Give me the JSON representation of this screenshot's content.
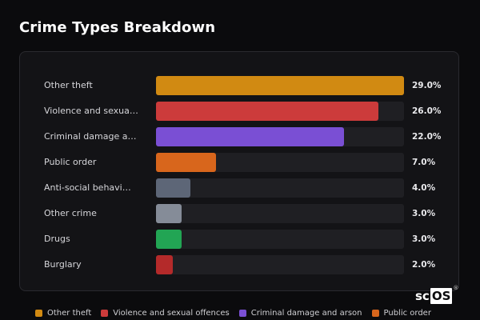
{
  "page": {
    "title": "Crime Types Breakdown"
  },
  "chart_data": {
    "type": "bar",
    "orientation": "horizontal",
    "title": "Crime Types Breakdown",
    "xlabel": "",
    "ylabel": "",
    "xlim": [
      0,
      29
    ],
    "grid": false,
    "legend_position": "bottom",
    "categories": [
      "Other theft",
      "Violence and sexua…",
      "Criminal damage an…",
      "Public order",
      "Anti-social behavi…",
      "Other crime",
      "Drugs",
      "Burglary"
    ],
    "values": [
      29.0,
      26.0,
      22.0,
      7.0,
      4.0,
      3.0,
      3.0,
      2.0
    ],
    "value_labels": [
      "29.0%",
      "26.0%",
      "22.0%",
      "7.0%",
      "4.0%",
      "3.0%",
      "3.0%",
      "2.0%"
    ],
    "colors": [
      "#d18a12",
      "#cc3b3b",
      "#7a4fd4",
      "#d8661c",
      "#5d6677",
      "#858c98",
      "#22a554",
      "#b42a2a"
    ]
  },
  "legend": [
    {
      "label": "Other theft",
      "color": "#d18a12"
    },
    {
      "label": "Violence and sexual offences",
      "color": "#cc3b3b"
    },
    {
      "label": "Criminal damage and arson",
      "color": "#7a4fd4"
    },
    {
      "label": "Public order",
      "color": "#d8661c"
    }
  ],
  "logo": {
    "text_a": "sc",
    "text_b": "OS",
    "reg": "®"
  }
}
